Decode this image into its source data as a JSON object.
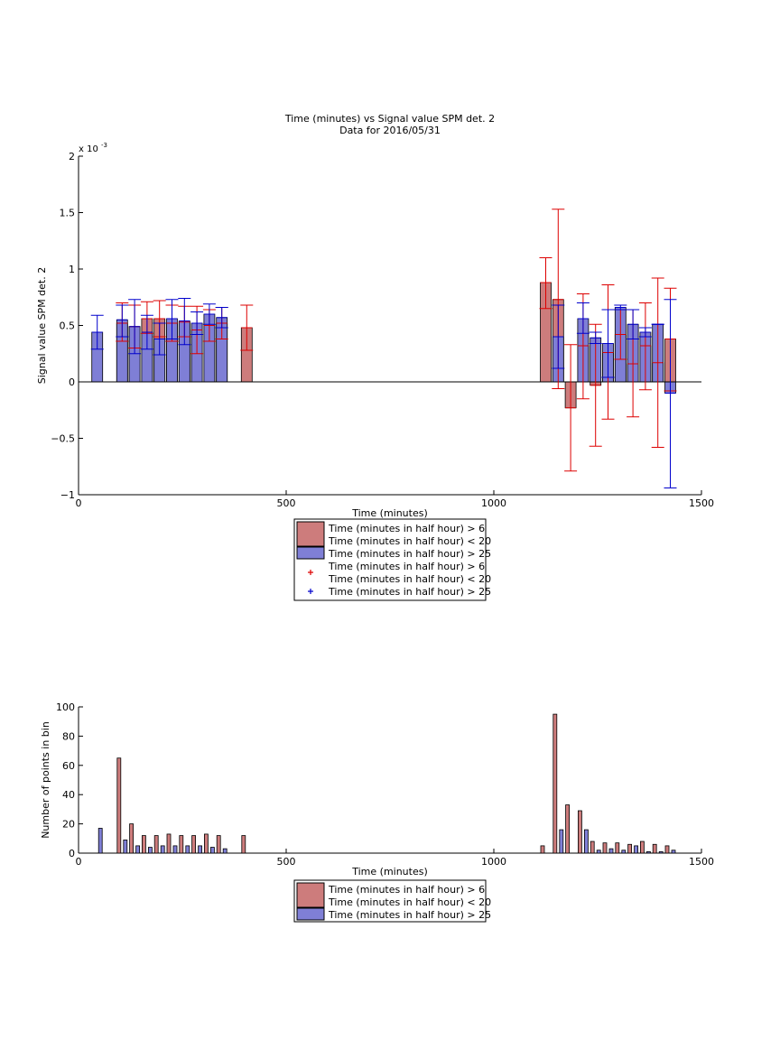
{
  "figure": {
    "title_line1": "Time (minutes) vs Signal value SPM det. 2",
    "title_line2": "Data for 2016/05/31"
  },
  "colors": {
    "red_fill": "#cd7c7c",
    "blue_fill": "#7f7fd6",
    "red_line": "#dd0000",
    "blue_line": "#0000cc"
  },
  "chart_data": [
    {
      "type": "bar",
      "xlabel": "Time (minutes)",
      "ylabel": "Signal value SPM det. 2",
      "exponent_label": "x 10",
      "exponent_power": "-3",
      "xlim": [
        0,
        1500
      ],
      "ylim": [
        -1,
        2
      ],
      "xticks": [
        0,
        500,
        1000,
        1500
      ],
      "yticks": [
        -1,
        -0.5,
        0,
        0.5,
        1,
        1.5,
        2
      ],
      "ytick_labels": [
        "−1",
        "−0.5",
        "0",
        "0.5",
        "1",
        "1.5",
        "2"
      ],
      "legend_placement": "below",
      "legend": [
        {
          "kind": "bar",
          "color": "red",
          "line1": "Time (minutes in half hour) > 6",
          "line2": "Time (minutes in half hour) < 20"
        },
        {
          "kind": "bar",
          "color": "blue",
          "line1": "Time (minutes in half hour) > 25",
          "line2": ""
        },
        {
          "kind": "marker",
          "color": "red",
          "line1": "Time (minutes in half hour) > 6",
          "line2": "Time (minutes in half hour) < 20"
        },
        {
          "kind": "marker",
          "color": "blue",
          "line1": "Time (minutes in half hour) > 25",
          "line2": ""
        }
      ],
      "series": [
        {
          "color": "red",
          "points": [
            {
              "x": 105,
              "y": 0.52,
              "lo": 0.36,
              "hi": 0.7
            },
            {
              "x": 135,
              "y": 0.49,
              "lo": 0.3,
              "hi": 0.68
            },
            {
              "x": 165,
              "y": 0.56,
              "lo": 0.43,
              "hi": 0.71
            },
            {
              "x": 195,
              "y": 0.56,
              "lo": 0.4,
              "hi": 0.72
            },
            {
              "x": 225,
              "y": 0.52,
              "lo": 0.36,
              "hi": 0.68
            },
            {
              "x": 255,
              "y": 0.53,
              "lo": 0.4,
              "hi": 0.67
            },
            {
              "x": 285,
              "y": 0.46,
              "lo": 0.25,
              "hi": 0.67
            },
            {
              "x": 315,
              "y": 0.5,
              "lo": 0.36,
              "hi": 0.64
            },
            {
              "x": 345,
              "y": 0.52,
              "lo": 0.38,
              "hi": 0.66
            },
            {
              "x": 405,
              "y": 0.48,
              "lo": 0.28,
              "hi": 0.68
            },
            {
              "x": 1125,
              "y": 0.88,
              "lo": 0.65,
              "hi": 1.1
            },
            {
              "x": 1155,
              "y": 0.73,
              "lo": -0.06,
              "hi": 1.53
            },
            {
              "x": 1185,
              "y": -0.23,
              "lo": -0.79,
              "hi": 0.33
            },
            {
              "x": 1215,
              "y": 0.32,
              "lo": -0.15,
              "hi": 0.78
            },
            {
              "x": 1245,
              "y": -0.03,
              "lo": -0.57,
              "hi": 0.51
            },
            {
              "x": 1275,
              "y": 0.26,
              "lo": -0.33,
              "hi": 0.86
            },
            {
              "x": 1305,
              "y": 0.42,
              "lo": 0.2,
              "hi": 0.64
            },
            {
              "x": 1335,
              "y": 0.16,
              "lo": -0.31,
              "hi": 0.64
            },
            {
              "x": 1365,
              "y": 0.32,
              "lo": -0.07,
              "hi": 0.7
            },
            {
              "x": 1395,
              "y": 0.17,
              "lo": -0.58,
              "hi": 0.92
            },
            {
              "x": 1425,
              "y": 0.38,
              "lo": -0.08,
              "hi": 0.83
            }
          ]
        },
        {
          "color": "blue",
          "points": [
            {
              "x": 45,
              "y": 0.44,
              "lo": 0.29,
              "hi": 0.59
            },
            {
              "x": 105,
              "y": 0.55,
              "lo": 0.4,
              "hi": 0.68
            },
            {
              "x": 135,
              "y": 0.49,
              "lo": 0.25,
              "hi": 0.73
            },
            {
              "x": 165,
              "y": 0.44,
              "lo": 0.29,
              "hi": 0.59
            },
            {
              "x": 195,
              "y": 0.38,
              "lo": 0.24,
              "hi": 0.52
            },
            {
              "x": 225,
              "y": 0.56,
              "lo": 0.38,
              "hi": 0.73
            },
            {
              "x": 255,
              "y": 0.54,
              "lo": 0.33,
              "hi": 0.74
            },
            {
              "x": 285,
              "y": 0.52,
              "lo": 0.42,
              "hi": 0.62
            },
            {
              "x": 315,
              "y": 0.6,
              "lo": 0.51,
              "hi": 0.69
            },
            {
              "x": 345,
              "y": 0.57,
              "lo": 0.48,
              "hi": 0.66
            },
            {
              "x": 1155,
              "y": 0.4,
              "lo": 0.12,
              "hi": 0.68
            },
            {
              "x": 1215,
              "y": 0.56,
              "lo": 0.43,
              "hi": 0.7
            },
            {
              "x": 1245,
              "y": 0.39,
              "lo": 0.34,
              "hi": 0.44
            },
            {
              "x": 1275,
              "y": 0.34,
              "lo": 0.04,
              "hi": 0.64
            },
            {
              "x": 1305,
              "y": 0.66,
              "lo": 0.64,
              "hi": 0.68
            },
            {
              "x": 1335,
              "y": 0.51,
              "lo": 0.38,
              "hi": 0.64
            },
            {
              "x": 1365,
              "y": 0.44,
              "lo": 0.4,
              "hi": 0.48
            },
            {
              "x": 1395,
              "y": 0.51,
              "lo": 0.51,
              "hi": 0.51
            },
            {
              "x": 1425,
              "y": -0.1,
              "lo": -0.94,
              "hi": 0.73
            }
          ]
        }
      ]
    },
    {
      "type": "bar",
      "xlabel": "Time (minutes)",
      "ylabel": "Number of points in bin",
      "xlim": [
        0,
        1500
      ],
      "ylim": [
        0,
        100
      ],
      "xticks": [
        0,
        500,
        1000,
        1500
      ],
      "yticks": [
        0,
        20,
        40,
        60,
        80,
        100
      ],
      "legend_placement": "below",
      "legend": [
        {
          "kind": "bar",
          "color": "red",
          "line1": "Time (minutes in half hour) > 6",
          "line2": "Time (minutes in half hour) < 20"
        },
        {
          "kind": "bar",
          "color": "blue",
          "line1": "Time (minutes in half hour) > 25",
          "line2": ""
        }
      ],
      "series": [
        {
          "color": "red",
          "points": [
            {
              "x": 105,
              "y": 65
            },
            {
              "x": 135,
              "y": 20
            },
            {
              "x": 165,
              "y": 12
            },
            {
              "x": 195,
              "y": 12
            },
            {
              "x": 225,
              "y": 13
            },
            {
              "x": 255,
              "y": 12
            },
            {
              "x": 285,
              "y": 12
            },
            {
              "x": 315,
              "y": 13
            },
            {
              "x": 345,
              "y": 12
            },
            {
              "x": 405,
              "y": 12
            },
            {
              "x": 1125,
              "y": 5
            },
            {
              "x": 1155,
              "y": 95
            },
            {
              "x": 1185,
              "y": 33
            },
            {
              "x": 1215,
              "y": 29
            },
            {
              "x": 1245,
              "y": 8
            },
            {
              "x": 1275,
              "y": 7
            },
            {
              "x": 1305,
              "y": 7
            },
            {
              "x": 1335,
              "y": 6
            },
            {
              "x": 1365,
              "y": 8
            },
            {
              "x": 1395,
              "y": 6
            },
            {
              "x": 1425,
              "y": 5
            }
          ]
        },
        {
          "color": "blue",
          "points": [
            {
              "x": 45,
              "y": 17
            },
            {
              "x": 105,
              "y": 9
            },
            {
              "x": 135,
              "y": 5
            },
            {
              "x": 165,
              "y": 4
            },
            {
              "x": 195,
              "y": 5
            },
            {
              "x": 225,
              "y": 5
            },
            {
              "x": 255,
              "y": 5
            },
            {
              "x": 285,
              "y": 5
            },
            {
              "x": 315,
              "y": 4
            },
            {
              "x": 345,
              "y": 3
            },
            {
              "x": 1155,
              "y": 16
            },
            {
              "x": 1215,
              "y": 16
            },
            {
              "x": 1245,
              "y": 2
            },
            {
              "x": 1275,
              "y": 3
            },
            {
              "x": 1305,
              "y": 2
            },
            {
              "x": 1335,
              "y": 5
            },
            {
              "x": 1365,
              "y": 1
            },
            {
              "x": 1395,
              "y": 1
            },
            {
              "x": 1425,
              "y": 2
            }
          ]
        }
      ]
    }
  ]
}
